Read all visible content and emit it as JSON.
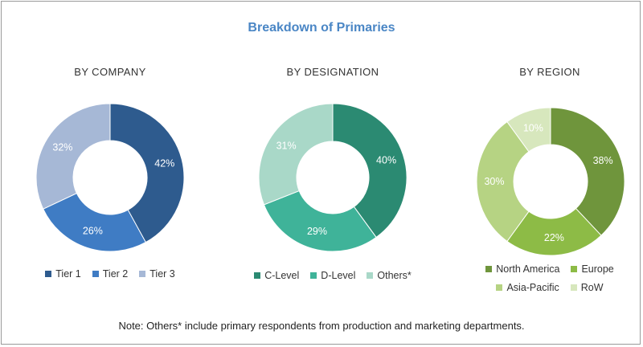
{
  "title": "Breakdown of Primaries",
  "note": "Note: Others* include primary respondents from production and marketing  departments.",
  "chart_data": [
    {
      "type": "pie",
      "subtitle": "BY COMPANY",
      "labels": [
        "Tier 1",
        "Tier 2",
        "Tier 3"
      ],
      "values": [
        42,
        26,
        32
      ],
      "value_labels": [
        "42%",
        "26%",
        "32%"
      ],
      "colors": [
        "#2e5b8e",
        "#3f7cc4",
        "#a6b8d6"
      ],
      "legend_position": "bottom",
      "legend_rows": [
        [
          0,
          1,
          2
        ]
      ]
    },
    {
      "type": "pie",
      "subtitle": "BY DESIGNATION",
      "labels": [
        "C-Level",
        "D-Level",
        "Others*"
      ],
      "values": [
        40,
        29,
        31
      ],
      "value_labels": [
        "40%",
        "29%",
        "31%"
      ],
      "colors": [
        "#2b8a72",
        "#3fb399",
        "#a9d8c8"
      ],
      "legend_position": "bottom",
      "legend_rows": [
        [
          0,
          1,
          2
        ]
      ]
    },
    {
      "type": "pie",
      "subtitle": "BY REGION",
      "labels": [
        "North America",
        "Europe",
        "Asia-Pacific",
        "RoW"
      ],
      "values": [
        38,
        22,
        30,
        10
      ],
      "value_labels": [
        "38%",
        "22%",
        "30%",
        "10%"
      ],
      "colors": [
        "#6f953c",
        "#8dbb46",
        "#b6d383",
        "#d7e7bd"
      ],
      "legend_position": "bottom",
      "legend_rows": [
        [
          0,
          1
        ],
        [
          2,
          3
        ]
      ]
    }
  ]
}
